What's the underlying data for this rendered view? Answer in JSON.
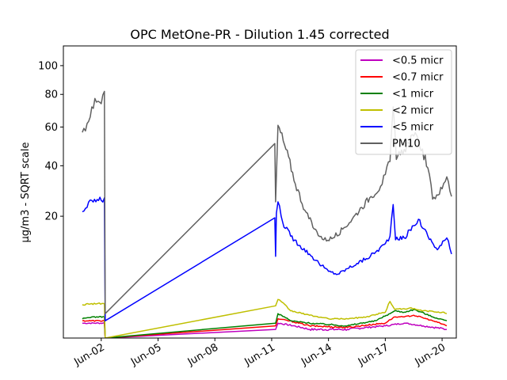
{
  "chart_data": {
    "type": "line",
    "title": "OPC MetOne-PR - Dilution 1.45 corrected",
    "xlabel": "",
    "ylabel": "µg/m3 - SQRT scale",
    "y_scale": "sqrt",
    "ylim": [
      0,
      115
    ],
    "xlim": [
      "2023-05-31",
      "2023-06-20 18:00"
    ],
    "x_ticks": [
      {
        "date": "2023-06-02",
        "label": "Jun-02"
      },
      {
        "date": "2023-06-05",
        "label": "Jun-05"
      },
      {
        "date": "2023-06-08",
        "label": "Jun-08"
      },
      {
        "date": "2023-06-11",
        "label": "Jun-11"
      },
      {
        "date": "2023-06-14",
        "label": "Jun-14"
      },
      {
        "date": "2023-06-17",
        "label": "Jun-17"
      },
      {
        "date": "2023-06-20",
        "label": "Jun-20"
      }
    ],
    "y_ticks": [
      {
        "value": 20,
        "label": "20"
      },
      {
        "value": 40,
        "label": "40"
      },
      {
        "value": 60,
        "label": "60"
      },
      {
        "value": 80,
        "label": "80"
      },
      {
        "value": 100,
        "label": "100"
      }
    ],
    "legend_position": "top-right",
    "series": [
      {
        "name": "<0.5 micr",
        "color": "#bf00bf",
        "points": [
          [
            "2023-06-01 00:00",
            0.3
          ],
          [
            "2023-06-02 04:00",
            0.3
          ],
          [
            "2023-06-02 05:00",
            0.0
          ],
          [
            "2023-06-11 05:00",
            0.1
          ],
          [
            "2023-06-11 08:00",
            0.3
          ],
          [
            "2023-06-13 00:00",
            0.1
          ],
          [
            "2023-06-15 00:00",
            0.1
          ],
          [
            "2023-06-17 00:00",
            0.2
          ],
          [
            "2023-06-18 00:00",
            0.3
          ],
          [
            "2023-06-19 00:00",
            0.2
          ],
          [
            "2023-06-20 06:00",
            0.1
          ]
        ]
      },
      {
        "name": "<0.7 micr",
        "color": "#ff0000",
        "points": [
          [
            "2023-06-01 00:00",
            0.4
          ],
          [
            "2023-06-02 04:00",
            0.4
          ],
          [
            "2023-06-02 05:00",
            0.0
          ],
          [
            "2023-06-11 05:00",
            0.2
          ],
          [
            "2023-06-11 08:00",
            0.5
          ],
          [
            "2023-06-13 00:00",
            0.2
          ],
          [
            "2023-06-15 00:00",
            0.15
          ],
          [
            "2023-06-17 00:00",
            0.3
          ],
          [
            "2023-06-17 12:00",
            0.6
          ],
          [
            "2023-06-18 00:00",
            0.6
          ],
          [
            "2023-06-18 12:00",
            0.7
          ],
          [
            "2023-06-19 12:00",
            0.4
          ],
          [
            "2023-06-20 06:00",
            0.2
          ]
        ]
      },
      {
        "name": "<1 micr",
        "color": "#008000",
        "points": [
          [
            "2023-06-01 00:00",
            0.5
          ],
          [
            "2023-06-01 12:00",
            0.6
          ],
          [
            "2023-06-02 04:00",
            0.6
          ],
          [
            "2023-06-02 05:00",
            0.0
          ],
          [
            "2023-06-11 05:00",
            0.3
          ],
          [
            "2023-06-11 08:00",
            0.8
          ],
          [
            "2023-06-12 00:00",
            0.4
          ],
          [
            "2023-06-13 00:00",
            0.3
          ],
          [
            "2023-06-15 00:00",
            0.2
          ],
          [
            "2023-06-16 12:00",
            0.4
          ],
          [
            "2023-06-17 06:00",
            0.8
          ],
          [
            "2023-06-17 12:00",
            1.0
          ],
          [
            "2023-06-18 00:00",
            0.9
          ],
          [
            "2023-06-18 12:00",
            1.1
          ],
          [
            "2023-06-19 12:00",
            0.6
          ],
          [
            "2023-06-20 06:00",
            0.4
          ]
        ]
      },
      {
        "name": "<2 micr",
        "color": "#bfbf00",
        "points": [
          [
            "2023-06-01 00:00",
            1.5
          ],
          [
            "2023-06-01 12:00",
            1.6
          ],
          [
            "2023-06-02 04:00",
            1.6
          ],
          [
            "2023-06-02 05:00",
            0.0
          ],
          [
            "2023-06-11 05:00",
            1.4
          ],
          [
            "2023-06-11 08:00",
            2.0
          ],
          [
            "2023-06-12 00:00",
            1.0
          ],
          [
            "2023-06-13 00:00",
            0.7
          ],
          [
            "2023-06-14 00:00",
            0.5
          ],
          [
            "2023-06-15 00:00",
            0.5
          ],
          [
            "2023-06-16 00:00",
            0.6
          ],
          [
            "2023-06-17 00:00",
            0.9
          ],
          [
            "2023-06-17 06:00",
            1.8
          ],
          [
            "2023-06-17 12:00",
            1.1
          ],
          [
            "2023-06-18 06:00",
            1.2
          ],
          [
            "2023-06-19 00:00",
            1.0
          ],
          [
            "2023-06-20 00:00",
            0.9
          ],
          [
            "2023-06-20 06:00",
            0.8
          ]
        ]
      },
      {
        "name": "<5 micr",
        "color": "#0000ff",
        "points": [
          [
            "2023-06-01 00:00",
            21.5
          ],
          [
            "2023-06-01 06:00",
            23
          ],
          [
            "2023-06-01 12:00",
            25.5
          ],
          [
            "2023-06-02 00:00",
            25.5
          ],
          [
            "2023-06-02 04:00",
            26.5
          ],
          [
            "2023-06-02 05:00",
            0.4
          ],
          [
            "2023-06-11 04:00",
            19.5
          ],
          [
            "2023-06-11 05:00",
            9.0
          ],
          [
            "2023-06-11 06:00",
            21
          ],
          [
            "2023-06-11 08:00",
            25
          ],
          [
            "2023-06-11 14:00",
            18
          ],
          [
            "2023-06-12 00:00",
            14
          ],
          [
            "2023-06-12 12:00",
            11.5
          ],
          [
            "2023-06-13 00:00",
            9.5
          ],
          [
            "2023-06-13 12:00",
            7.5
          ],
          [
            "2023-06-14 00:00",
            6.0
          ],
          [
            "2023-06-14 12:00",
            5.5
          ],
          [
            "2023-06-15 00:00",
            6.5
          ],
          [
            "2023-06-15 12:00",
            7.5
          ],
          [
            "2023-06-16 00:00",
            8.5
          ],
          [
            "2023-06-16 12:00",
            10
          ],
          [
            "2023-06-17 00:00",
            12
          ],
          [
            "2023-06-17 06:00",
            14
          ],
          [
            "2023-06-17 10:00",
            24
          ],
          [
            "2023-06-17 13:00",
            13
          ],
          [
            "2023-06-18 00:00",
            13.5
          ],
          [
            "2023-06-18 12:00",
            17
          ],
          [
            "2023-06-18 18:00",
            19
          ],
          [
            "2023-06-19 06:00",
            14
          ],
          [
            "2023-06-19 18:00",
            10.5
          ],
          [
            "2023-06-20 06:00",
            13.5
          ],
          [
            "2023-06-20 12:00",
            9.5
          ]
        ]
      },
      {
        "name": "PM10",
        "color": "#606060",
        "points": [
          [
            "2023-06-01 00:00",
            57
          ],
          [
            "2023-06-01 06:00",
            62
          ],
          [
            "2023-06-01 12:00",
            72
          ],
          [
            "2023-06-01 18:00",
            75
          ],
          [
            "2023-06-02 00:00",
            74
          ],
          [
            "2023-06-02 04:00",
            82
          ],
          [
            "2023-06-02 05:00",
            0.8
          ],
          [
            "2023-06-11 04:00",
            51
          ],
          [
            "2023-06-11 05:00",
            25
          ],
          [
            "2023-06-11 08:00",
            61
          ],
          [
            "2023-06-11 18:00",
            48
          ],
          [
            "2023-06-12 06:00",
            32
          ],
          [
            "2023-06-12 18:00",
            22
          ],
          [
            "2023-06-13 06:00",
            16
          ],
          [
            "2023-06-13 18:00",
            13
          ],
          [
            "2023-06-14 06:00",
            13.5
          ],
          [
            "2023-06-14 18:00",
            16
          ],
          [
            "2023-06-15 06:00",
            19
          ],
          [
            "2023-06-15 18:00",
            23
          ],
          [
            "2023-06-16 06:00",
            27
          ],
          [
            "2023-06-16 18:00",
            31
          ],
          [
            "2023-06-17 00:00",
            36
          ],
          [
            "2023-06-17 06:00",
            42
          ],
          [
            "2023-06-17 10:00",
            72
          ],
          [
            "2023-06-17 14:00",
            43
          ],
          [
            "2023-06-18 00:00",
            48
          ],
          [
            "2023-06-18 12:00",
            55
          ],
          [
            "2023-06-18 18:00",
            53
          ],
          [
            "2023-06-19 06:00",
            39
          ],
          [
            "2023-06-19 12:00",
            26
          ],
          [
            "2023-06-20 00:00",
            30
          ],
          [
            "2023-06-20 06:00",
            35
          ],
          [
            "2023-06-20 12:00",
            27
          ]
        ]
      }
    ]
  }
}
